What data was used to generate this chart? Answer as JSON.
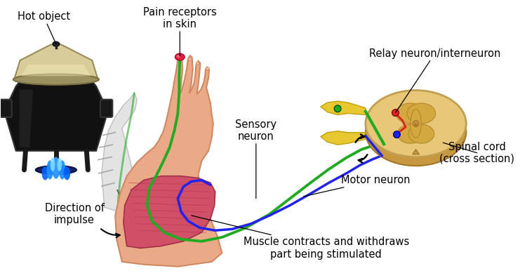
{
  "bg_color": "#ffffff",
  "labels": {
    "hot_object": "Hot object",
    "pain_receptors": "Pain receptors\nin skin",
    "sensory_neuron": "Sensory\nneuron",
    "relay_neuron": "Relay neuron/interneuron",
    "spinal_cord": "Spinal cord\n(cross section)",
    "motor_neuron": "Motor neuron",
    "direction": "Direction of\nimpulse",
    "muscle": "Muscle contracts and withdraws\npart being stimulated"
  },
  "colors": {
    "sensory_nerve": "#22AA22",
    "motor_nerve": "#2222EE",
    "yellow_root": "#E8C830",
    "spinal_cord_outer": "#E8C878",
    "spinal_cord_mid": "#D4A850",
    "spinal_cord_inner": "#C89840",
    "sc_gray": "#C8A860",
    "arm_skin": "#EAAA88",
    "arm_dark": "#D08860",
    "muscle_color": "#D05068",
    "muscle_dark": "#A03048",
    "pot_body": "#1a1a1a",
    "pot_lid": "#d4c9a0",
    "flame_blue": "#1E90FF",
    "pain_receptor": "#E82040",
    "arrow_color": "#000000",
    "ghost": "#c8c8c8"
  },
  "figsize": [
    7.41,
    3.96
  ],
  "dpi": 100
}
